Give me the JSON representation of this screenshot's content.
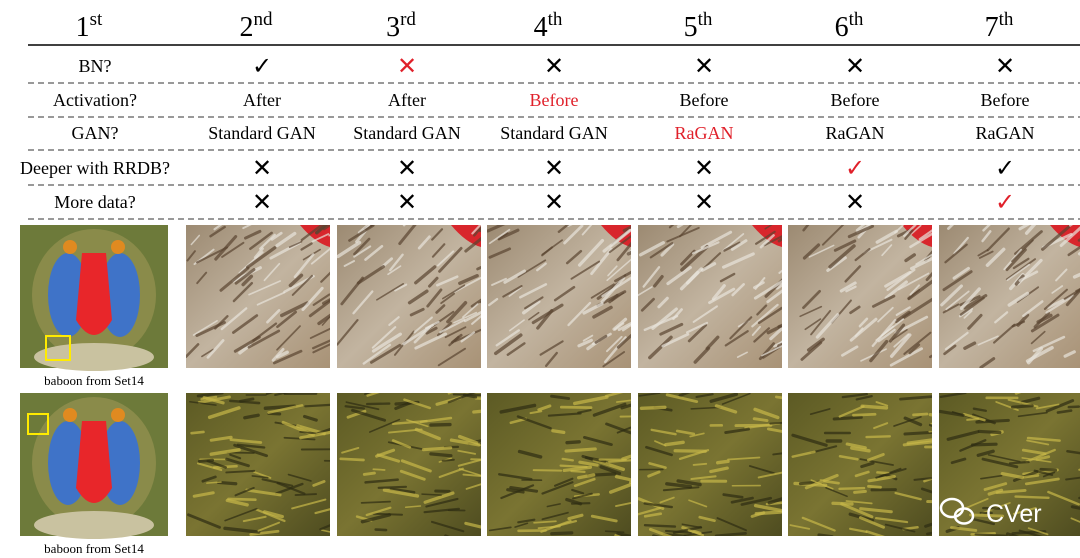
{
  "header": [
    {
      "num": "1",
      "sup": "st"
    },
    {
      "num": "2",
      "sup": "nd"
    },
    {
      "num": "3",
      "sup": "rd"
    },
    {
      "num": "4",
      "sup": "th"
    },
    {
      "num": "5",
      "sup": "th"
    },
    {
      "num": "6",
      "sup": "th"
    },
    {
      "num": "7",
      "sup": "th"
    }
  ],
  "rows": [
    {
      "label": "BN?",
      "cells": [
        {
          "text": "✓",
          "highlight": false
        },
        {
          "text": "✕",
          "highlight": true
        },
        {
          "text": "✕",
          "highlight": false
        },
        {
          "text": "✕",
          "highlight": false
        },
        {
          "text": "✕",
          "highlight": false
        },
        {
          "text": "✕",
          "highlight": false
        }
      ]
    },
    {
      "label": "Activation?",
      "cells": [
        {
          "text": "After",
          "highlight": false
        },
        {
          "text": "After",
          "highlight": false
        },
        {
          "text": "Before",
          "highlight": true
        },
        {
          "text": "Before",
          "highlight": false
        },
        {
          "text": "Before",
          "highlight": false
        },
        {
          "text": "Before",
          "highlight": false
        }
      ]
    },
    {
      "label": "GAN?",
      "cells": [
        {
          "text": "Standard GAN",
          "highlight": false
        },
        {
          "text": "Standard GAN",
          "highlight": false
        },
        {
          "text": "Standard GAN",
          "highlight": false
        },
        {
          "text": "RaGAN",
          "highlight": true
        },
        {
          "text": "RaGAN",
          "highlight": false
        },
        {
          "text": "RaGAN",
          "highlight": false
        }
      ]
    },
    {
      "label": "Deeper with RRDB?",
      "cells": [
        {
          "text": "✕",
          "highlight": false
        },
        {
          "text": "✕",
          "highlight": false
        },
        {
          "text": "✕",
          "highlight": false
        },
        {
          "text": "✕",
          "highlight": false
        },
        {
          "text": "✓",
          "highlight": true
        },
        {
          "text": "✓",
          "highlight": false
        }
      ]
    },
    {
      "label": "More data?",
      "cells": [
        {
          "text": "✕",
          "highlight": false
        },
        {
          "text": "✕",
          "highlight": false
        },
        {
          "text": "✕",
          "highlight": false
        },
        {
          "text": "✕",
          "highlight": false
        },
        {
          "text": "✕",
          "highlight": false
        },
        {
          "text": "✓",
          "highlight": true
        }
      ]
    }
  ],
  "captions": [
    "baboon from Set14",
    "baboon from Set14"
  ],
  "watermark": "CVer"
}
